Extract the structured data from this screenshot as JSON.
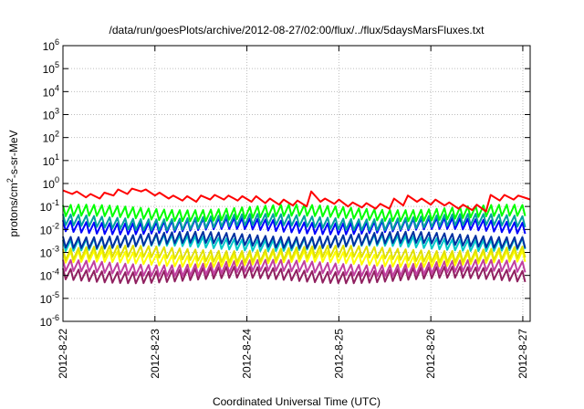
{
  "chart_data": {
    "type": "line",
    "title": "/data/run/goesPlots/archive/2012-08-27/02:00/flux/../flux/5daysMarsFluxes.txt",
    "xlabel": "Coordinated Universal Time (UTC)",
    "ylabel": {
      "before": "protons/cm",
      "sup": "2",
      "after": "-s-sr-MeV"
    },
    "yscale": "log",
    "ylim": [
      -6,
      6
    ],
    "y_ticks": [
      {
        "base": "10",
        "exp": "-6",
        "value": -6
      },
      {
        "base": "10",
        "exp": "-5",
        "value": -5
      },
      {
        "base": "10",
        "exp": "-4",
        "value": -4
      },
      {
        "base": "10",
        "exp": "-3",
        "value": -3
      },
      {
        "base": "10",
        "exp": "-2",
        "value": -2
      },
      {
        "base": "10",
        "exp": "-1",
        "value": -1
      },
      {
        "base": "10",
        "exp": "0",
        "value": 0
      },
      {
        "base": "10",
        "exp": "1",
        "value": 1
      },
      {
        "base": "10",
        "exp": "2",
        "value": 2
      },
      {
        "base": "10",
        "exp": "3",
        "value": 3
      },
      {
        "base": "10",
        "exp": "4",
        "value": 4
      },
      {
        "base": "10",
        "exp": "5",
        "value": 5
      },
      {
        "base": "10",
        "exp": "6",
        "value": 6
      }
    ],
    "x_ticks": [
      "2012-8-22",
      "2012-8-23",
      "2012-8-24",
      "2012-8-25",
      "2012-8-26",
      "2012-8-27"
    ],
    "xlim_days": [
      0,
      5.08
    ],
    "grid": true,
    "series": [
      {
        "color": "#ff0000",
        "label_note": "",
        "x": [
          0.0,
          0.1,
          0.15,
          0.25,
          0.3,
          0.4,
          0.45,
          0.55,
          0.6,
          0.7,
          0.75,
          0.85,
          0.9,
          1.0,
          1.05,
          1.15,
          1.2,
          1.3,
          1.35,
          1.45,
          1.5,
          1.6,
          1.65,
          1.75,
          1.8,
          1.9,
          1.95,
          2.05,
          2.1,
          2.2,
          2.25,
          2.35,
          2.4,
          2.5,
          2.55,
          2.65,
          2.7,
          2.8,
          2.85,
          2.95,
          3.0,
          3.1,
          3.15,
          3.25,
          3.3,
          3.4,
          3.45,
          3.55,
          3.6,
          3.7,
          3.75,
          3.85,
          3.9,
          4.0,
          4.05,
          4.15,
          4.2,
          4.3,
          4.35,
          4.45,
          4.5,
          4.6,
          4.65,
          4.75,
          4.8,
          4.9,
          4.95,
          5.05,
          5.08
        ],
        "y": [
          0.5,
          0.35,
          0.45,
          0.25,
          0.35,
          0.22,
          0.4,
          0.3,
          0.55,
          0.35,
          0.6,
          0.45,
          0.55,
          0.3,
          0.4,
          0.22,
          0.3,
          0.18,
          0.28,
          0.16,
          0.3,
          0.2,
          0.32,
          0.2,
          0.3,
          0.18,
          0.28,
          0.16,
          0.28,
          0.14,
          0.22,
          0.12,
          0.2,
          0.11,
          0.18,
          0.1,
          0.45,
          0.16,
          0.22,
          0.13,
          0.2,
          0.1,
          0.15,
          0.09,
          0.14,
          0.08,
          0.13,
          0.08,
          0.22,
          0.11,
          0.3,
          0.16,
          0.22,
          0.12,
          0.2,
          0.11,
          0.15,
          0.08,
          0.12,
          0.07,
          0.12,
          0.06,
          0.32,
          0.18,
          0.32,
          0.2,
          0.3,
          0.22,
          0.2
        ]
      },
      {
        "color": "#00ff00",
        "x": [],
        "y": [],
        "base": 0.03,
        "amp": 0.3
      },
      {
        "color": "#00a0a0",
        "x": [],
        "y": [],
        "base": 0.012,
        "amp": 0.3
      },
      {
        "color": "#0000ff",
        "x": [],
        "y": [],
        "base": 0.008,
        "amp": 0.3
      },
      {
        "color": "#0030a0",
        "x": [],
        "y": [],
        "base": 0.002,
        "amp": 0.3
      },
      {
        "color": "#00c8c8",
        "x": [],
        "y": [],
        "base": 0.0015,
        "amp": 0.3
      },
      {
        "color": "#e0e000",
        "x": [],
        "y": [],
        "base": 0.0005,
        "amp": 0.3
      },
      {
        "color": "#ffff00",
        "x": [],
        "y": [],
        "base": 0.0003,
        "amp": 0.3
      },
      {
        "color": "#c040a0",
        "x": [],
        "y": [],
        "base": 0.00012,
        "amp": 0.3
      },
      {
        "color": "#902060",
        "x": [],
        "y": [],
        "base": 6e-05,
        "amp": 0.3
      }
    ]
  }
}
